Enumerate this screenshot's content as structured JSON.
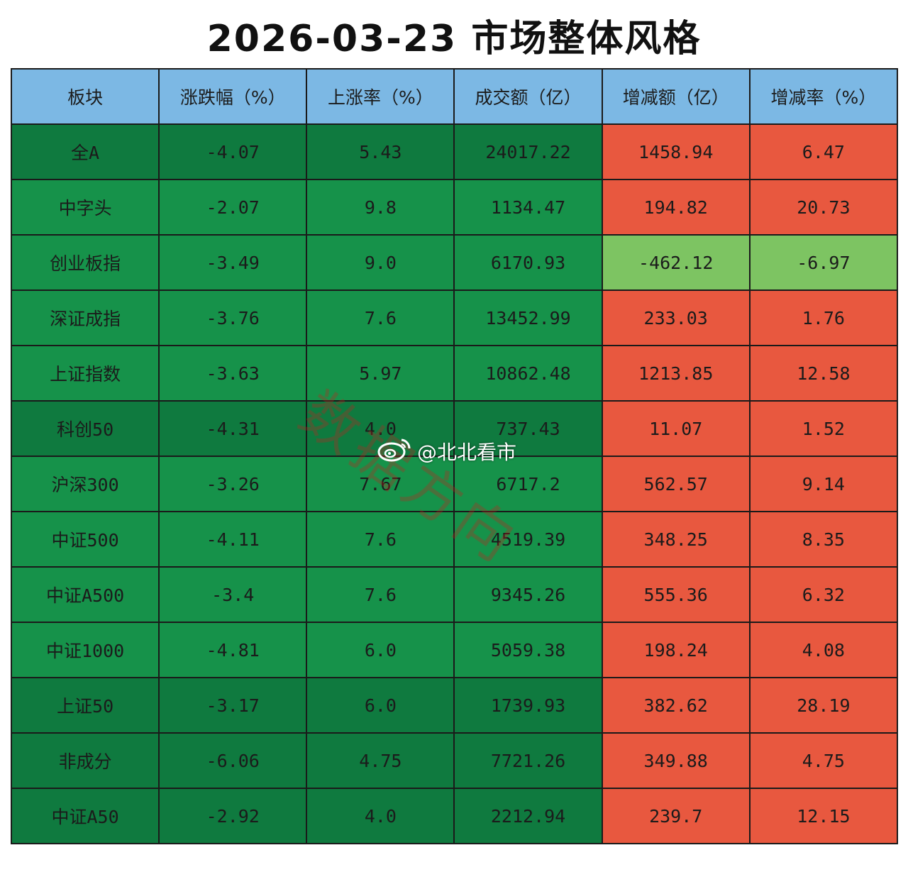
{
  "title": "2026-03-23 市场整体风格",
  "watermark": "数据方向",
  "weibo_handle": "@北北看市",
  "icons": {
    "weibo": "weibo-logo-icon"
  },
  "colors": {
    "header": "#7cb8e4",
    "green_dark": "#0f7a3f",
    "green_mid": "#16924a",
    "green_light": "#7dc462",
    "red": "#e8583f"
  },
  "chart_data": {
    "type": "table",
    "title": "2026-03-23 市场整体风格",
    "columns": [
      "板块",
      "涨跌幅（%）",
      "上涨率（%）",
      "成交额（亿）",
      "增减额（亿）",
      "增减率（%）"
    ],
    "rows": [
      [
        "全A",
        "-4.07",
        "5.43",
        "24017.22",
        "1458.94",
        "6.47"
      ],
      [
        "中字头",
        "-2.07",
        "9.8",
        "1134.47",
        "194.82",
        "20.73"
      ],
      [
        "创业板指",
        "-3.49",
        "9.0",
        "6170.93",
        "-462.12",
        "-6.97"
      ],
      [
        "深证成指",
        "-3.76",
        "7.6",
        "13452.99",
        "233.03",
        "1.76"
      ],
      [
        "上证指数",
        "-3.63",
        "5.97",
        "10862.48",
        "1213.85",
        "12.58"
      ],
      [
        "科创50",
        "-4.31",
        "4.0",
        "737.43",
        "11.07",
        "1.52"
      ],
      [
        "沪深300",
        "-3.26",
        "7.67",
        "6717.2",
        "562.57",
        "9.14"
      ],
      [
        "中证500",
        "-4.11",
        "7.6",
        "4519.39",
        "348.25",
        "8.35"
      ],
      [
        "中证A500",
        "-3.4",
        "7.6",
        "9345.26",
        "555.36",
        "6.32"
      ],
      [
        "中证1000",
        "-4.81",
        "6.0",
        "5059.38",
        "198.24",
        "4.08"
      ],
      [
        "上证50",
        "-3.17",
        "6.0",
        "1739.93",
        "382.62",
        "28.19"
      ],
      [
        "非成分",
        "-6.06",
        "4.75",
        "7721.26",
        "349.88",
        "4.75"
      ],
      [
        "中证A50",
        "-2.92",
        "4.0",
        "2212.94",
        "239.7",
        "12.15"
      ]
    ]
  }
}
